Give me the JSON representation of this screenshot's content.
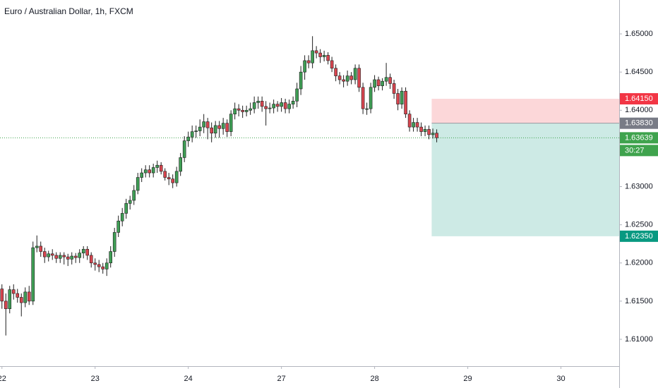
{
  "chart_data": {
    "type": "candlestick",
    "title": "Euro / Australian Dollar, 1h, FXCM",
    "up_color": "#3f9e55",
    "down_color": "#d8454f",
    "xlim": [
      -0.5,
      159
    ],
    "ylim": [
      1.60658,
      1.65444
    ],
    "xticks": [
      {
        "value": 0,
        "label": "22"
      },
      {
        "value": 24,
        "label": "23"
      },
      {
        "value": 48,
        "label": "24"
      },
      {
        "value": 72,
        "label": "27"
      },
      {
        "value": 96,
        "label": "28"
      },
      {
        "value": 120,
        "label": "29"
      },
      {
        "value": 144,
        "label": "30"
      }
    ],
    "yticks": [
      {
        "value": 1.61,
        "label": "1.61000"
      },
      {
        "value": 1.615,
        "label": "1.61500"
      },
      {
        "value": 1.62,
        "label": "1.62000"
      },
      {
        "value": 1.625,
        "label": "1.62500"
      },
      {
        "value": 1.63,
        "label": "1.63000"
      },
      {
        "value": 1.635,
        "label": "1.63500"
      },
      {
        "value": 1.64,
        "label": "1.64000"
      },
      {
        "value": 1.645,
        "label": "1.64500"
      },
      {
        "value": 1.65,
        "label": "1.65000"
      }
    ],
    "open": [
      1.6166,
      1.615,
      1.614,
      1.6165,
      1.616,
      1.6155,
      1.6148,
      1.6162,
      1.615,
      1.622,
      1.6222,
      1.6215,
      1.6208,
      1.6212,
      1.621,
      1.6206,
      1.621,
      1.6208,
      1.6205,
      1.6209,
      1.6207,
      1.6213,
      1.6218,
      1.621,
      1.62,
      1.6198,
      1.6195,
      1.6192,
      1.62,
      1.6215,
      1.624,
      1.6255,
      1.6265,
      1.6278,
      1.6282,
      1.6295,
      1.6312,
      1.6318,
      1.6322,
      1.6318,
      1.6325,
      1.6328,
      1.632,
      1.6312,
      1.631,
      1.6305,
      1.632,
      1.6338,
      1.636,
      1.6365,
      1.6372,
      1.6373,
      1.6378,
      1.6385,
      1.6377,
      1.637,
      1.638,
      1.6376,
      1.6383,
      1.6372,
      1.6395,
      1.6402,
      1.64,
      1.6398,
      1.64,
      1.6402,
      1.641,
      1.6412,
      1.6405,
      1.6402,
      1.6403,
      1.6408,
      1.6405,
      1.641,
      1.6402,
      1.6408,
      1.6412,
      1.6428,
      1.645,
      1.6465,
      1.6462,
      1.6478,
      1.6475,
      1.647,
      1.6472,
      1.6465,
      1.6455,
      1.6445,
      1.644,
      1.6438,
      1.6445,
      1.644,
      1.6455,
      1.643,
      1.6402,
      1.6402,
      1.643,
      1.644,
      1.6432,
      1.6438,
      1.6443,
      1.6435,
      1.6422,
      1.6408,
      1.6425,
      1.6395,
      1.6378,
      1.6384,
      1.6378,
      1.6372,
      1.6375,
      1.6368,
      1.637
    ],
    "high": [
      1.6172,
      1.616,
      1.617,
      1.6172,
      1.6166,
      1.616,
      1.6168,
      1.617,
      1.6228,
      1.6236,
      1.6228,
      1.622,
      1.6216,
      1.6218,
      1.6214,
      1.6214,
      1.6214,
      1.6212,
      1.6214,
      1.6213,
      1.6218,
      1.6222,
      1.6222,
      1.6214,
      1.6206,
      1.6204,
      1.62,
      1.6206,
      1.6222,
      1.6246,
      1.6262,
      1.6272,
      1.6284,
      1.6288,
      1.6302,
      1.6318,
      1.6324,
      1.6328,
      1.6328,
      1.633,
      1.6334,
      1.6332,
      1.6324,
      1.6318,
      1.6316,
      1.6326,
      1.6344,
      1.6366,
      1.6372,
      1.638,
      1.638,
      1.6388,
      1.6395,
      1.639,
      1.6384,
      1.6386,
      1.6386,
      1.639,
      1.6388,
      1.64,
      1.641,
      1.6408,
      1.6406,
      1.6406,
      1.641,
      1.6418,
      1.6418,
      1.6418,
      1.6412,
      1.641,
      1.6414,
      1.6412,
      1.6416,
      1.6415,
      1.6414,
      1.6418,
      1.6436,
      1.6458,
      1.6472,
      1.6472,
      1.6497,
      1.6484,
      1.648,
      1.6478,
      1.6476,
      1.647,
      1.646,
      1.645,
      1.6446,
      1.6452,
      1.645,
      1.646,
      1.646,
      1.6436,
      1.641,
      1.6436,
      1.6446,
      1.6444,
      1.6442,
      1.6462,
      1.6448,
      1.644,
      1.6428,
      1.643,
      1.643,
      1.64,
      1.639,
      1.639,
      1.6384,
      1.638,
      1.638,
      1.6376,
      1.6375
    ],
    "low": [
      1.614,
      1.6105,
      1.6134,
      1.6152,
      1.6148,
      1.613,
      1.6142,
      1.6145,
      1.6145,
      1.6214,
      1.6208,
      1.62,
      1.6202,
      1.6204,
      1.62,
      1.62,
      1.6198,
      1.6196,
      1.6198,
      1.62,
      1.62,
      1.6206,
      1.6204,
      1.6194,
      1.619,
      1.6188,
      1.6186,
      1.6183,
      1.6194,
      1.6208,
      1.6234,
      1.6248,
      1.6258,
      1.627,
      1.6276,
      1.629,
      1.6306,
      1.6312,
      1.6312,
      1.6312,
      1.6318,
      1.6316,
      1.6308,
      1.6302,
      1.6298,
      1.63,
      1.6314,
      1.6332,
      1.6352,
      1.6358,
      1.6364,
      1.6366,
      1.637,
      1.6362,
      1.6358,
      1.6364,
      1.6364,
      1.6368,
      1.6365,
      1.6366,
      1.6388,
      1.6392,
      1.639,
      1.6392,
      1.6394,
      1.6396,
      1.6402,
      1.6398,
      1.638,
      1.6396,
      1.6396,
      1.6398,
      1.6398,
      1.6396,
      1.6396,
      1.6402,
      1.6404,
      1.642,
      1.644,
      1.6455,
      1.6455,
      1.6468,
      1.6462,
      1.6464,
      1.646,
      1.645,
      1.6438,
      1.6434,
      1.643,
      1.6432,
      1.6434,
      1.6434,
      1.6424,
      1.6395,
      1.6394,
      1.6396,
      1.6424,
      1.6426,
      1.6426,
      1.6432,
      1.6428,
      1.6415,
      1.64,
      1.6402,
      1.639,
      1.6372,
      1.6372,
      1.6372,
      1.6366,
      1.6366,
      1.6362,
      1.6363,
      1.6358
    ],
    "close": [
      1.615,
      1.614,
      1.6165,
      1.616,
      1.6155,
      1.6148,
      1.6162,
      1.615,
      1.622,
      1.6222,
      1.6215,
      1.6208,
      1.6212,
      1.621,
      1.6206,
      1.621,
      1.6208,
      1.6205,
      1.6209,
      1.6207,
      1.6213,
      1.6218,
      1.621,
      1.62,
      1.6198,
      1.6195,
      1.6192,
      1.62,
      1.6215,
      1.624,
      1.6255,
      1.6265,
      1.6278,
      1.6282,
      1.6295,
      1.6312,
      1.6318,
      1.6322,
      1.6318,
      1.6325,
      1.6328,
      1.632,
      1.6312,
      1.631,
      1.6305,
      1.632,
      1.6338,
      1.636,
      1.6365,
      1.6372,
      1.6373,
      1.6378,
      1.6385,
      1.6377,
      1.637,
      1.638,
      1.6376,
      1.6383,
      1.6372,
      1.6395,
      1.6402,
      1.64,
      1.6398,
      1.64,
      1.6402,
      1.641,
      1.6412,
      1.6405,
      1.6402,
      1.6403,
      1.6408,
      1.6405,
      1.641,
      1.6402,
      1.6408,
      1.6412,
      1.6428,
      1.645,
      1.6465,
      1.6462,
      1.6478,
      1.6475,
      1.647,
      1.6472,
      1.6465,
      1.6455,
      1.6445,
      1.644,
      1.6438,
      1.6445,
      1.644,
      1.6455,
      1.643,
      1.6402,
      1.6402,
      1.643,
      1.644,
      1.6432,
      1.6438,
      1.6443,
      1.6435,
      1.6422,
      1.6408,
      1.6425,
      1.6395,
      1.6378,
      1.6384,
      1.6378,
      1.6372,
      1.6375,
      1.6368,
      1.637,
      1.6364
    ],
    "position": {
      "x_start": 110.7,
      "stop": {
        "value": 1.6415,
        "label": "1.64150",
        "color": "#f23645"
      },
      "entry": {
        "value": 1.6383,
        "label": "1.63830",
        "color": "#787b86"
      },
      "target": {
        "value": 1.6235,
        "label": "1.62350",
        "color": "#089981"
      }
    },
    "last_price": {
      "value": 1.63639,
      "label": "1.63639",
      "countdown": "30:27",
      "color": "#3fa34d"
    }
  }
}
